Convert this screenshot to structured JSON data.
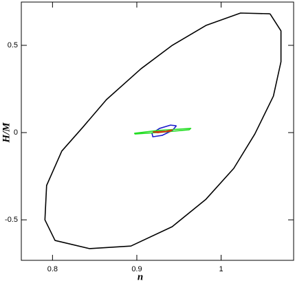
{
  "chart_data": {
    "type": "line",
    "x_label": "n",
    "y_label": "H/M",
    "xlim": [
      0.763,
      1.086
    ],
    "ylim": [
      -0.732,
      0.748
    ],
    "xticks": [
      0.8,
      0.9,
      1
    ],
    "yticks": [
      -0.5,
      0,
      0.5
    ],
    "series": [
      {
        "color": "#000000",
        "x": [
          1.058,
          1.071,
          1.071,
          1.062,
          1.04,
          1.015,
          0.982,
          0.942,
          0.893,
          0.844,
          0.803,
          0.791,
          0.793,
          0.811,
          0.836,
          0.864,
          0.905,
          0.942,
          0.982,
          1.023,
          1.058
        ],
        "values": [
          0.681,
          0.583,
          0.406,
          0.209,
          -0.008,
          -0.205,
          -0.382,
          -0.539,
          -0.65,
          -0.665,
          -0.618,
          -0.5,
          -0.303,
          -0.106,
          0.031,
          0.189,
          0.366,
          0.5,
          0.614,
          0.685,
          0.681
        ]
      },
      {
        "color": "#1a1acc",
        "x": [
          0.947,
          0.942,
          0.93,
          0.919,
          0.918,
          0.927,
          0.94,
          0.947
        ],
        "values": [
          0.039,
          0.012,
          -0.016,
          -0.024,
          -0.004,
          0.024,
          0.043,
          0.039
        ]
      },
      {
        "color": "#22dd22",
        "x": [
          0.897,
          0.925,
          0.964,
          0.962,
          0.934,
          0.898,
          0.897
        ],
        "values": [
          -0.004,
          0.012,
          0.024,
          0.016,
          0.004,
          -0.008,
          -0.004
        ]
      },
      {
        "color": "#cc3311",
        "x": [
          0.919,
          0.935,
          0.942,
          0.94,
          0.925,
          0.919
        ],
        "values": [
          0.004,
          0.008,
          0.016,
          0.008,
          0.0,
          0.004
        ]
      }
    ]
  }
}
